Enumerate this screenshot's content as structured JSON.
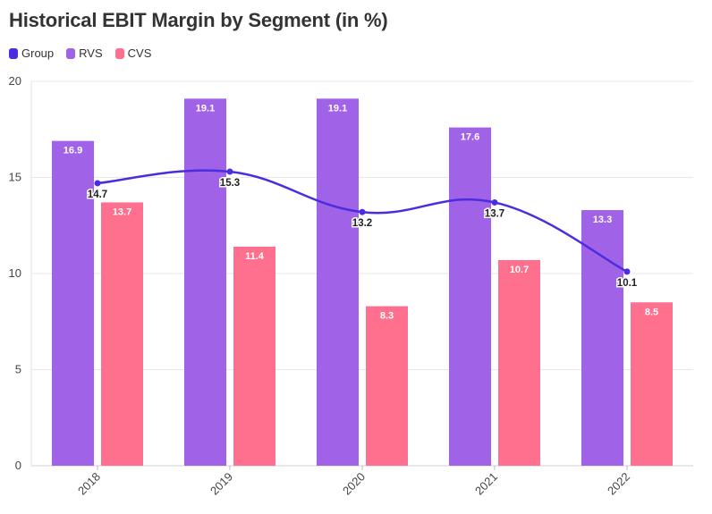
{
  "chart_data": {
    "type": "bar",
    "title": "Historical EBIT Margin by Segment (in %)",
    "categories": [
      "2018",
      "2019",
      "2020",
      "2021",
      "2022"
    ],
    "series": [
      {
        "name": "Group",
        "type": "line",
        "color": "#4A2DDF",
        "values": [
          14.7,
          15.3,
          13.2,
          13.7,
          10.1
        ]
      },
      {
        "name": "RVS",
        "type": "bar",
        "color": "#A062E6",
        "values": [
          16.9,
          19.1,
          19.1,
          17.6,
          13.3
        ]
      },
      {
        "name": "CVS",
        "type": "bar",
        "color": "#FF6F8E",
        "values": [
          13.7,
          11.4,
          8.3,
          10.7,
          8.5
        ]
      }
    ],
    "ylim": [
      0,
      20
    ],
    "yticks": [
      0,
      5,
      10,
      15,
      20
    ],
    "grid": true,
    "legend_position": "top-left",
    "xlabel": "",
    "ylabel": ""
  }
}
